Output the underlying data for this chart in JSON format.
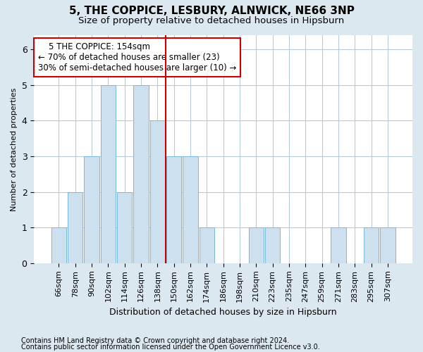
{
  "title": "5, THE COPPICE, LESBURY, ALNWICK, NE66 3NP",
  "subtitle": "Size of property relative to detached houses in Hipsburn",
  "xlabel": "Distribution of detached houses by size in Hipsburn",
  "ylabel": "Number of detached properties",
  "categories": [
    "66sqm",
    "78sqm",
    "90sqm",
    "102sqm",
    "114sqm",
    "126sqm",
    "138sqm",
    "150sqm",
    "162sqm",
    "174sqm",
    "186sqm",
    "198sqm",
    "210sqm",
    "223sqm",
    "235sqm",
    "247sqm",
    "259sqm",
    "271sqm",
    "283sqm",
    "295sqm",
    "307sqm"
  ],
  "values": [
    1,
    2,
    3,
    5,
    2,
    5,
    4,
    3,
    3,
    1,
    0,
    0,
    1,
    1,
    0,
    0,
    0,
    1,
    0,
    1,
    1
  ],
  "bar_color": "#cce0f0",
  "bar_edge_color": "#7ab8d8",
  "red_line_x": 7.5,
  "red_line_color": "#cc0000",
  "annotation_line1": "    5 THE COPPICE: 154sqm",
  "annotation_line2": "← 70% of detached houses are smaller (23)",
  "annotation_line3": "30% of semi-detached houses are larger (10) →",
  "annotation_box_color": "#ffffff",
  "annotation_box_edge": "#cc0000",
  "ylim": [
    0,
    6.4
  ],
  "yticks": [
    0,
    1,
    2,
    3,
    4,
    5,
    6
  ],
  "footer_line1": "Contains HM Land Registry data © Crown copyright and database right 2024.",
  "footer_line2": "Contains public sector information licensed under the Open Government Licence v3.0.",
  "background_color": "#dce8f0",
  "plot_background_color": "#ffffff",
  "title_fontsize": 11,
  "subtitle_fontsize": 9.5,
  "axis_fontsize": 8,
  "ylabel_fontsize": 8,
  "xlabel_fontsize": 9,
  "footer_fontsize": 7,
  "annotation_fontsize": 8.5
}
